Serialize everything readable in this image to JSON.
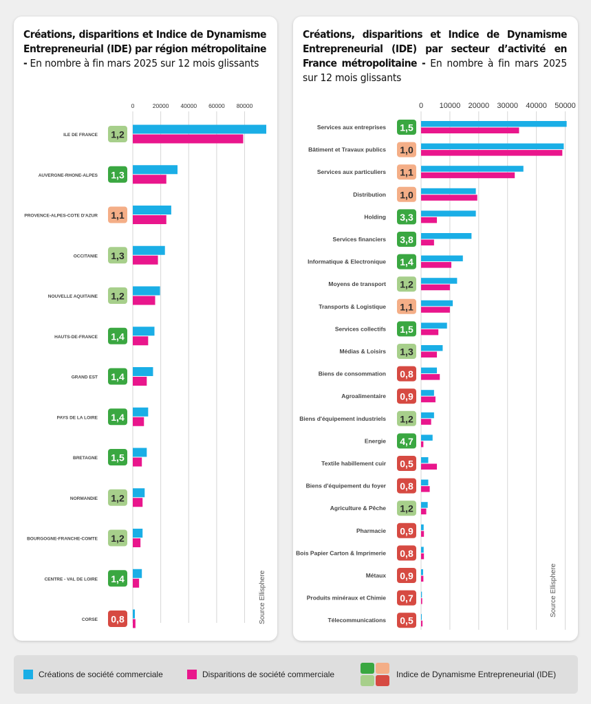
{
  "colors": {
    "creations": "#1aaee6",
    "disparitions": "#e9168c",
    "ide_dark_green": "#3aa741",
    "ide_light_green": "#a7cf8b",
    "ide_orange": "#f4ae87",
    "ide_red": "#d64a42"
  },
  "left_panel": {
    "title_bold": "Créations, disparitions et Indice de Dynamisme Entrepreneurial (IDE) par région métropolitaine -",
    "title_normal": " En nombre à fin mars 2025 sur 12 mois glissants",
    "source": "Source Ellisphere"
  },
  "right_panel": {
    "title_bold": "Créations, disparitions et Indice de Dynamisme Entrepreneurial (IDE) par secteur d’activité en France métropolitaine -",
    "title_normal": " En nombre à fin mars 2025 sur 12 mois glissants",
    "source": "Source Ellisphere"
  },
  "legend": {
    "creations": "Créations de société commerciale",
    "disparitions": "Disparitions de société commerciale",
    "ide": "Indice de Dynamisme Entrepreneurial (IDE)"
  },
  "chart_data": [
    {
      "type": "bar",
      "orientation": "horizontal",
      "xlim": [
        0,
        95000
      ],
      "ticks": [
        0,
        20000,
        40000,
        60000,
        80000
      ],
      "grid": true,
      "categories": [
        "ILE DE FRANCE",
        "AUVERGNE-RHONE-ALPES",
        "PROVENCE-ALPES-COTE D'AZUR",
        "OCCITANIE",
        "NOUVELLE AQUITAINE",
        "HAUTS-DE-FRANCE",
        "GRAND EST",
        "PAYS DE LA LOIRE",
        "BRETAGNE",
        "NORMANDIE",
        "BOURGOGNE-FRANCHE-COMTE",
        "CENTRE - VAL DE LOIRE",
        "CORSE"
      ],
      "series": [
        {
          "key": "creations",
          "values": [
            95500,
            32000,
            27500,
            23000,
            19500,
            15500,
            14500,
            11000,
            10000,
            8500,
            7000,
            6500,
            1500
          ]
        },
        {
          "key": "disparitions",
          "values": [
            79000,
            24000,
            24000,
            18000,
            16000,
            11000,
            10000,
            8000,
            6500,
            7000,
            5500,
            4500,
            1900
          ]
        }
      ],
      "ide": {
        "labels": [
          "1,2",
          "1,3",
          "1,1",
          "1,3",
          "1,2",
          "1,4",
          "1,4",
          "1,4",
          "1,5",
          "1,2",
          "1,2",
          "1,4",
          "0,8"
        ],
        "colors": [
          "light_green",
          "dark_green",
          "orange",
          "light_green",
          "light_green",
          "dark_green",
          "dark_green",
          "dark_green",
          "dark_green",
          "light_green",
          "light_green",
          "dark_green",
          "red"
        ]
      }
    },
    {
      "type": "bar",
      "orientation": "horizontal",
      "xlim": [
        0,
        50000
      ],
      "ticks": [
        0,
        10000,
        20000,
        30000,
        40000,
        50000
      ],
      "grid": true,
      "categories": [
        "Services aux entreprises",
        "Bâtiment et Travaux publics",
        "Services aux particuliers",
        "Distribution",
        "Holding",
        "Services financiers",
        "Informatique & Electronique",
        "Moyens de transport",
        "Transports & Logistique",
        "Services collectifs",
        "Médias & Loisirs",
        "Biens de consommation",
        "Agroalimentaire",
        "Biens d'équipement industriels",
        "Energie",
        "Textile habillement cuir",
        "Biens d'équipement du foyer",
        "Agriculture & Pêche",
        "Pharmacie",
        "Bois Papier Carton & Imprimerie",
        "Métaux",
        "Produits minéraux et Chimie",
        "Télecommunications"
      ],
      "series": [
        {
          "key": "creations",
          "values": [
            50500,
            49500,
            35500,
            19000,
            19000,
            17500,
            14500,
            12500,
            11000,
            9000,
            7500,
            5500,
            4500,
            4500,
            4000,
            2500,
            2500,
            2300,
            900,
            900,
            700,
            300,
            250
          ]
        },
        {
          "key": "disparitions",
          "values": [
            34000,
            49000,
            32500,
            19500,
            5500,
            4500,
            10500,
            10000,
            10000,
            6000,
            5500,
            6500,
            5000,
            3500,
            800,
            5500,
            3000,
            1800,
            1000,
            1000,
            800,
            400,
            500
          ]
        }
      ],
      "ide": {
        "labels": [
          "1,5",
          "1,0",
          "1,1",
          "1,0",
          "3,3",
          "3,8",
          "1,4",
          "1,2",
          "1,1",
          "1,5",
          "1,3",
          "0,8",
          "0,9",
          "1,2",
          "4,7",
          "0,5",
          "0,8",
          "1,2",
          "0,9",
          "0,8",
          "0,9",
          "0,7",
          "0,5"
        ],
        "colors": [
          "dark_green",
          "orange",
          "orange",
          "orange",
          "dark_green",
          "dark_green",
          "dark_green",
          "light_green",
          "orange",
          "dark_green",
          "light_green",
          "red",
          "red",
          "light_green",
          "dark_green",
          "red",
          "red",
          "light_green",
          "red",
          "red",
          "red",
          "red",
          "red"
        ]
      }
    }
  ]
}
